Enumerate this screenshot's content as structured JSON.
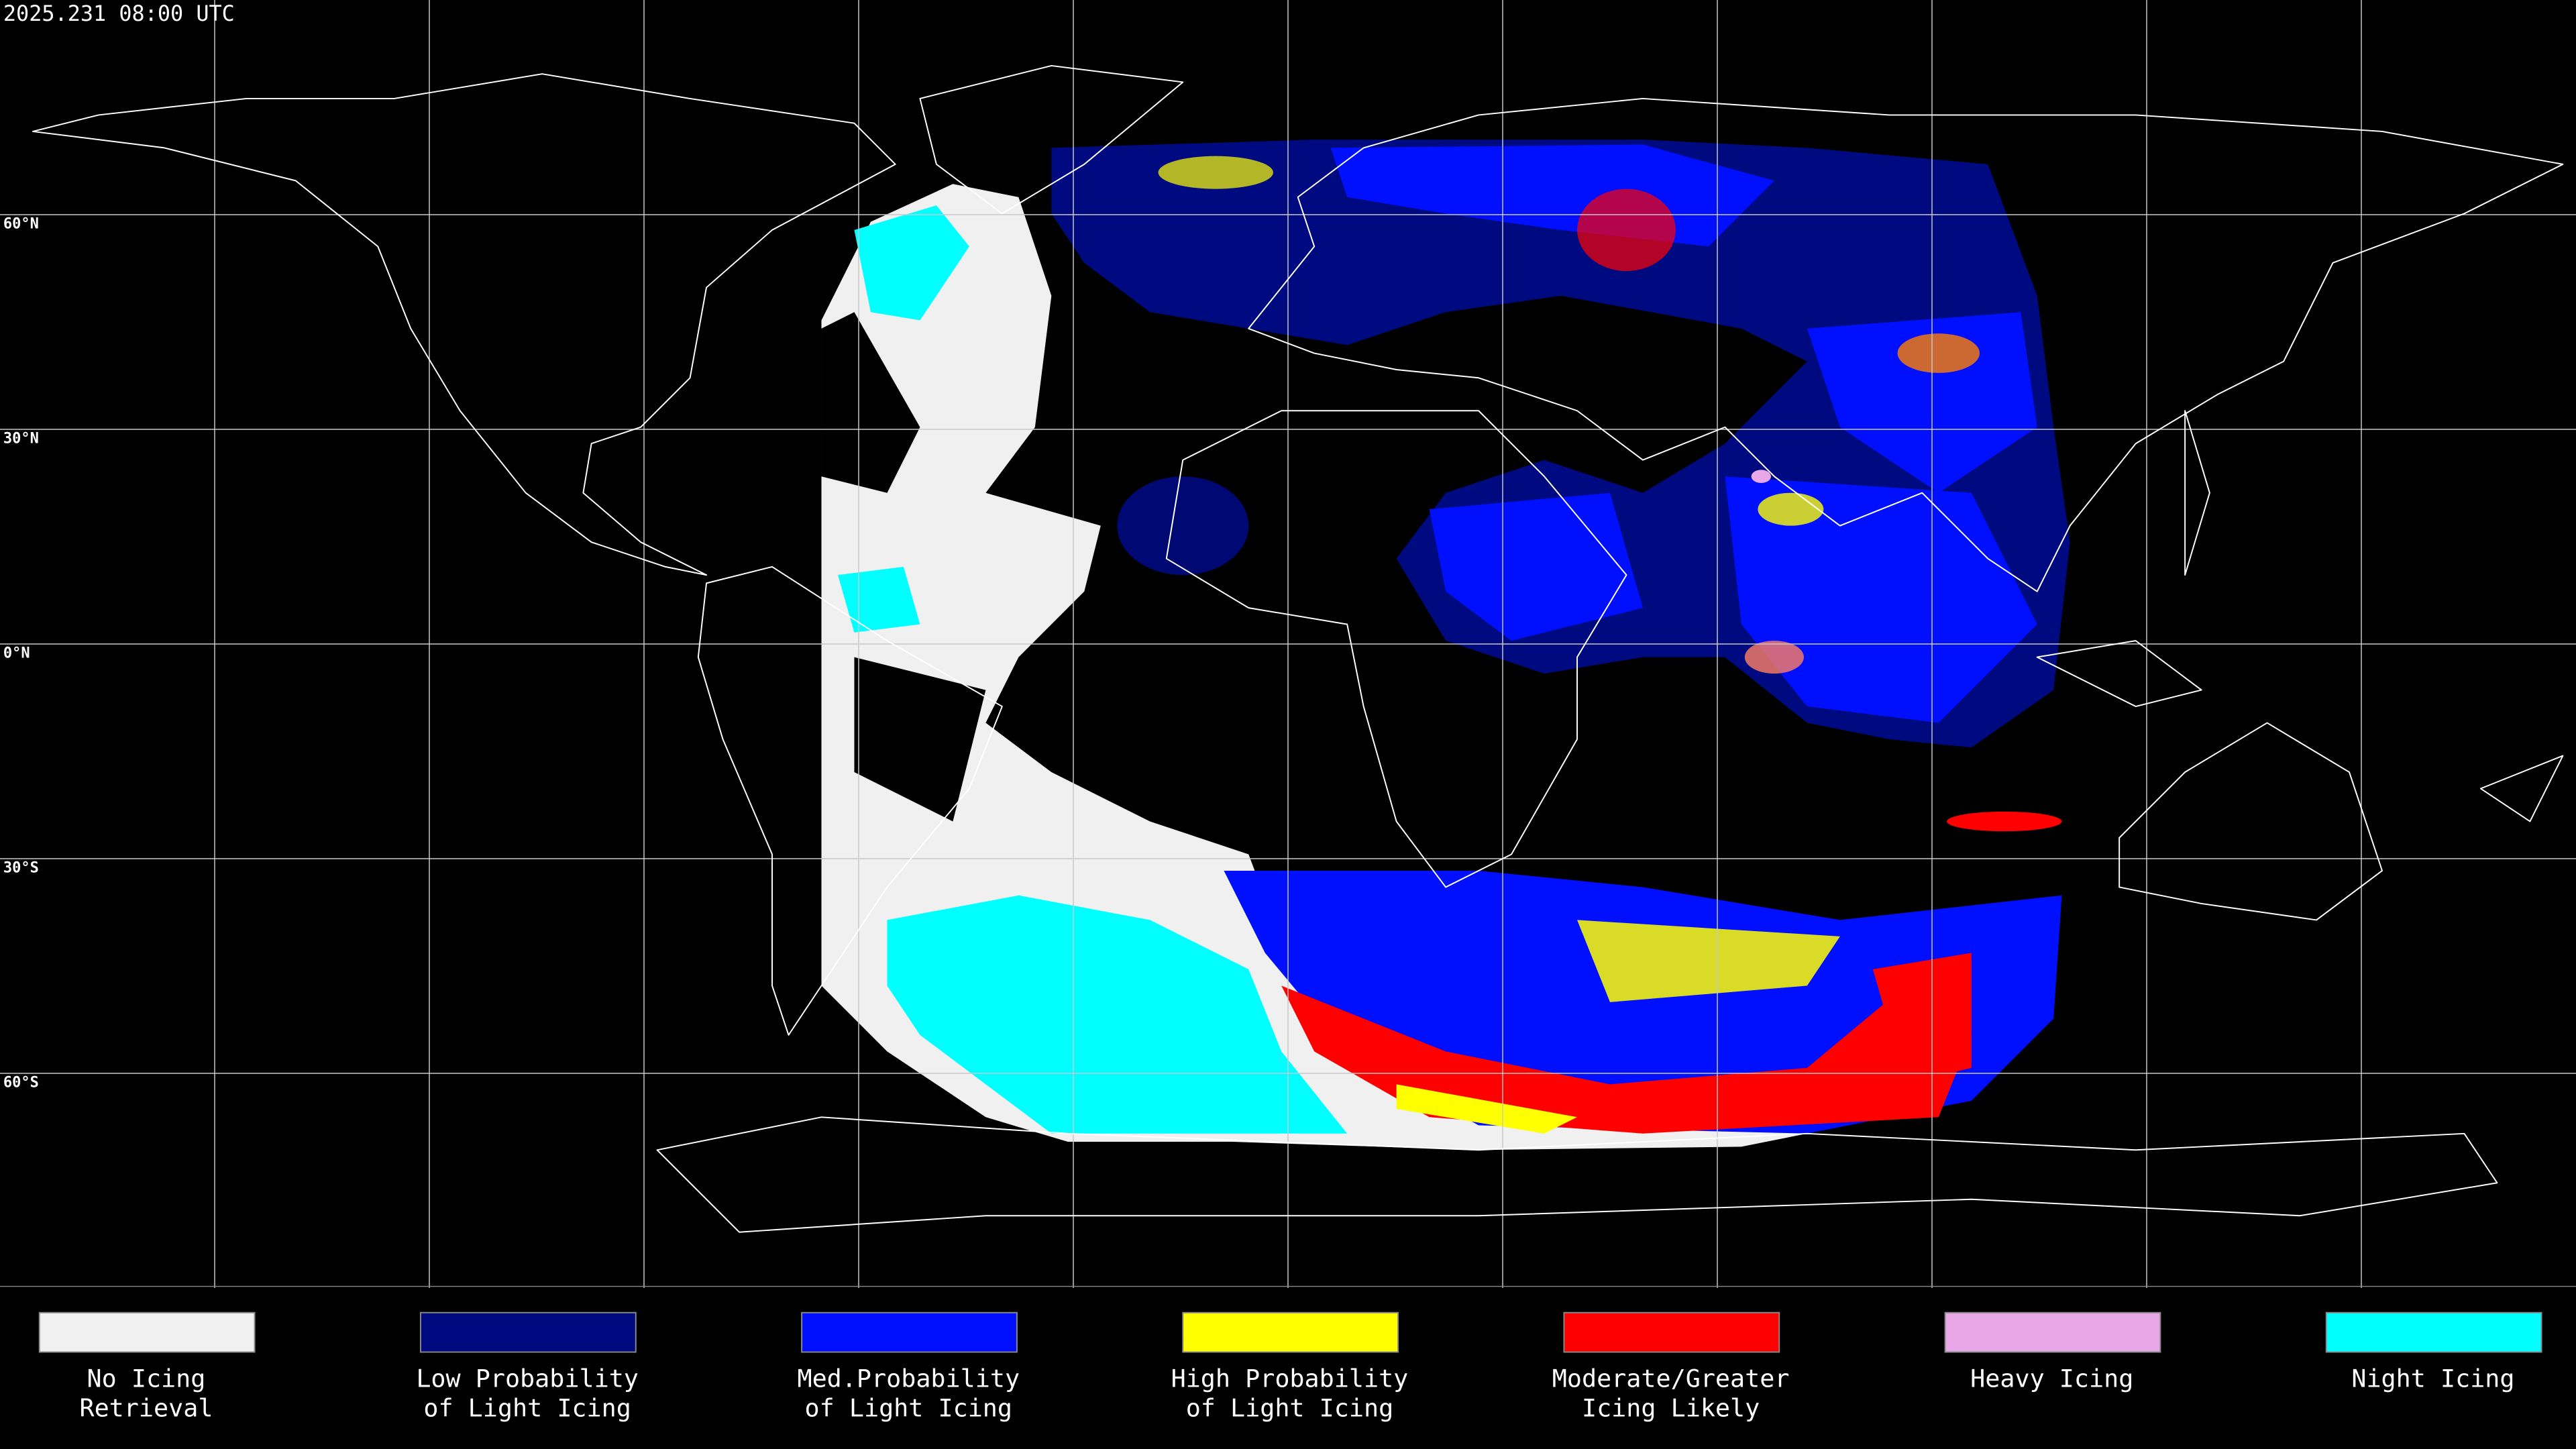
{
  "header": {
    "timestamp": "2025.231 08:00 UTC"
  },
  "map": {
    "latitude_labels": [
      {
        "value": 60,
        "label": "60°N"
      },
      {
        "value": 30,
        "label": "30°N"
      },
      {
        "value": 0,
        "label": "0°N"
      },
      {
        "value": -30,
        "label": "30°S"
      },
      {
        "value": -60,
        "label": "60°S"
      }
    ]
  },
  "legend": [
    {
      "lines": [
        "No Icing",
        "Retrieval"
      ],
      "color": "#f0f0f0"
    },
    {
      "lines": [
        "Low Probability",
        "of Light Icing"
      ],
      "color": "#000a80"
    },
    {
      "lines": [
        "Med.Probability",
        "of Light Icing"
      ],
      "color": "#0010ff"
    },
    {
      "lines": [
        "High Probability",
        "of Light Icing"
      ],
      "color": "#ffff00"
    },
    {
      "lines": [
        "Moderate/Greater",
        "Icing Likely"
      ],
      "color": "#ff0000"
    },
    {
      "lines": [
        "Heavy Icing"
      ],
      "color": "#e8a8e8"
    },
    {
      "lines": [
        "Night Icing"
      ],
      "color": "#00ffff"
    }
  ]
}
